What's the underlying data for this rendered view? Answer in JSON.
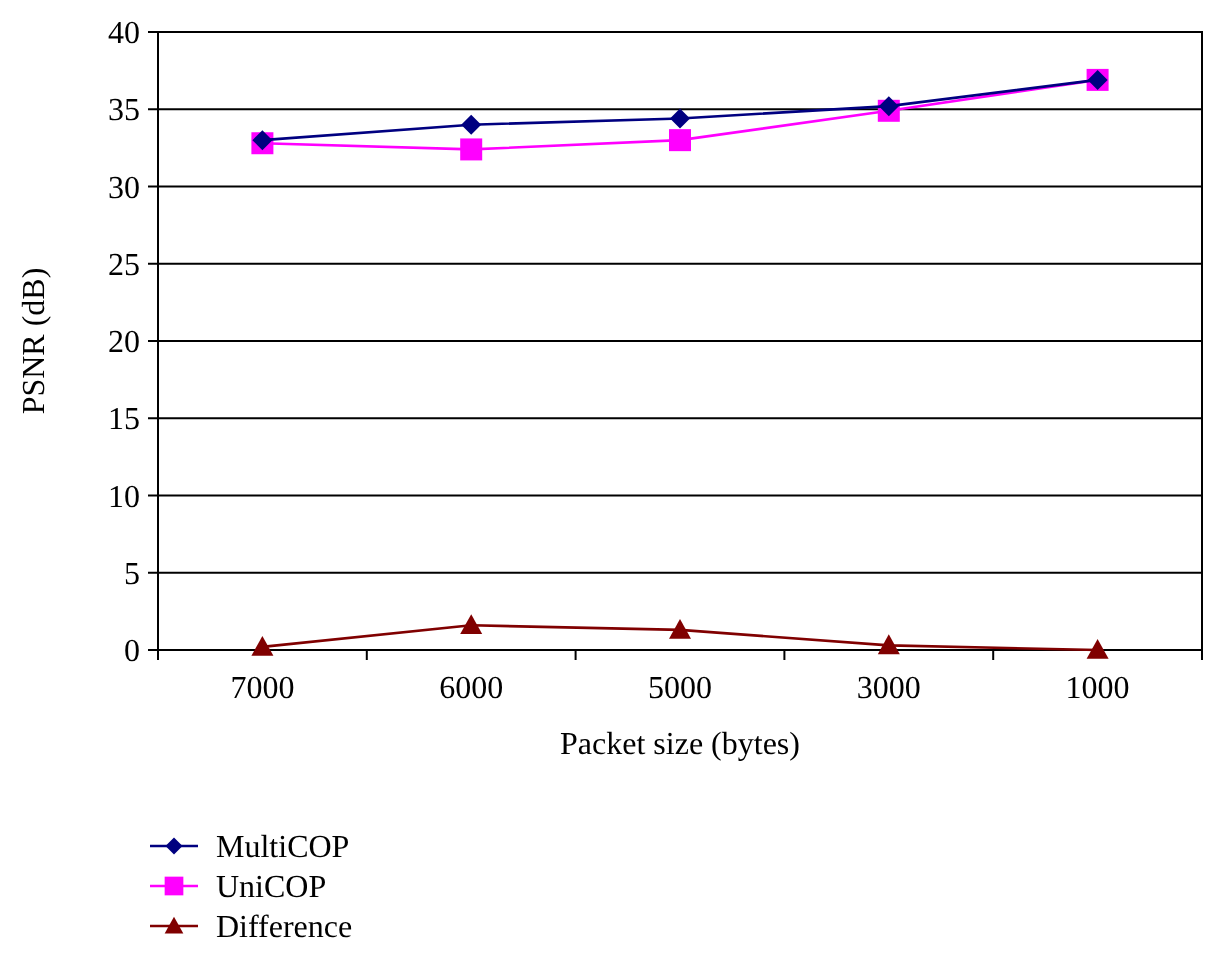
{
  "chart_data": {
    "type": "line",
    "xlabel": "Packet size (bytes)",
    "ylabel": "PSNR (dB)",
    "categories": [
      "7000",
      "6000",
      "5000",
      "3000",
      "1000"
    ],
    "ylim": [
      0,
      40
    ],
    "yticks": [
      0,
      5,
      10,
      15,
      20,
      25,
      30,
      35,
      40
    ],
    "grid": "y",
    "legend": "bottom left",
    "series": [
      {
        "name": "MultiCOP",
        "color": "#000080",
        "marker": "diamond",
        "values": [
          33.0,
          34.0,
          34.4,
          35.2,
          36.9
        ]
      },
      {
        "name": "UniCOP",
        "color": "#ff00ff",
        "marker": "square",
        "values": [
          32.8,
          32.4,
          33.0,
          34.9,
          36.9
        ]
      },
      {
        "name": "Difference",
        "color": "#800000",
        "marker": "triangle",
        "values": [
          0.2,
          1.6,
          1.3,
          0.3,
          0.0
        ]
      }
    ]
  }
}
